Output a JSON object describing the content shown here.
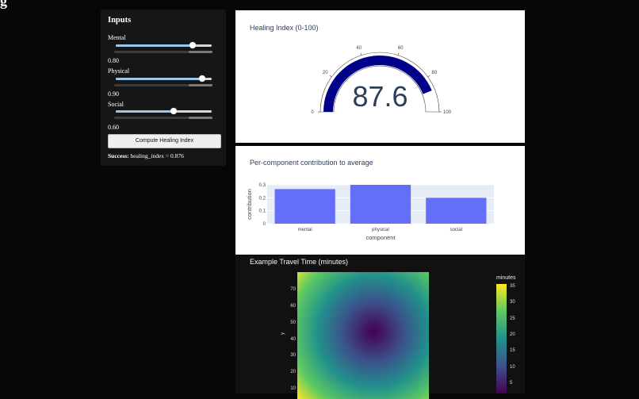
{
  "page": {
    "cut_heading": "g"
  },
  "inputs": {
    "title": "Inputs",
    "sliders": [
      {
        "label": "Mental",
        "value_text": "0.80",
        "fraction": 0.8
      },
      {
        "label": "Physical",
        "value_text": "0.90",
        "fraction": 0.9
      },
      {
        "label": "Social",
        "value_text": "0.60",
        "fraction": 0.6
      }
    ],
    "button_label": "Compute Healing Index",
    "status_strong": "Success:",
    "status_text": " healing_index = 0.876"
  },
  "gauge": {
    "title": "Healing Index (0-100)",
    "value": 87.6,
    "value_text": "87.6",
    "range": [
      0,
      100
    ],
    "ticks": [
      "0",
      "20",
      "40",
      "60",
      "80",
      "100"
    ],
    "bar_color": "#00008b"
  },
  "chart_data": [
    {
      "type": "bar",
      "title": "Per-component contribution to average",
      "categories": [
        "mental",
        "physical",
        "social"
      ],
      "values": [
        0.267,
        0.3,
        0.2
      ],
      "xlabel": "component",
      "ylabel": "contribution",
      "ylim": [
        0,
        0.3
      ],
      "yticks": [
        "0",
        "0.1",
        "0.2",
        "0.3"
      ],
      "bar_color": "#636efa"
    },
    {
      "type": "heatmap",
      "title": "Example Travel Time (minutes)",
      "ylabel": "y",
      "yticks": [
        "10",
        "20",
        "30",
        "40",
        "50",
        "60",
        "70"
      ],
      "colorbar_title": "minutes",
      "colorbar_ticks": [
        "5",
        "10",
        "15",
        "20",
        "25",
        "30",
        "35"
      ],
      "colorscale": "viridis"
    }
  ]
}
